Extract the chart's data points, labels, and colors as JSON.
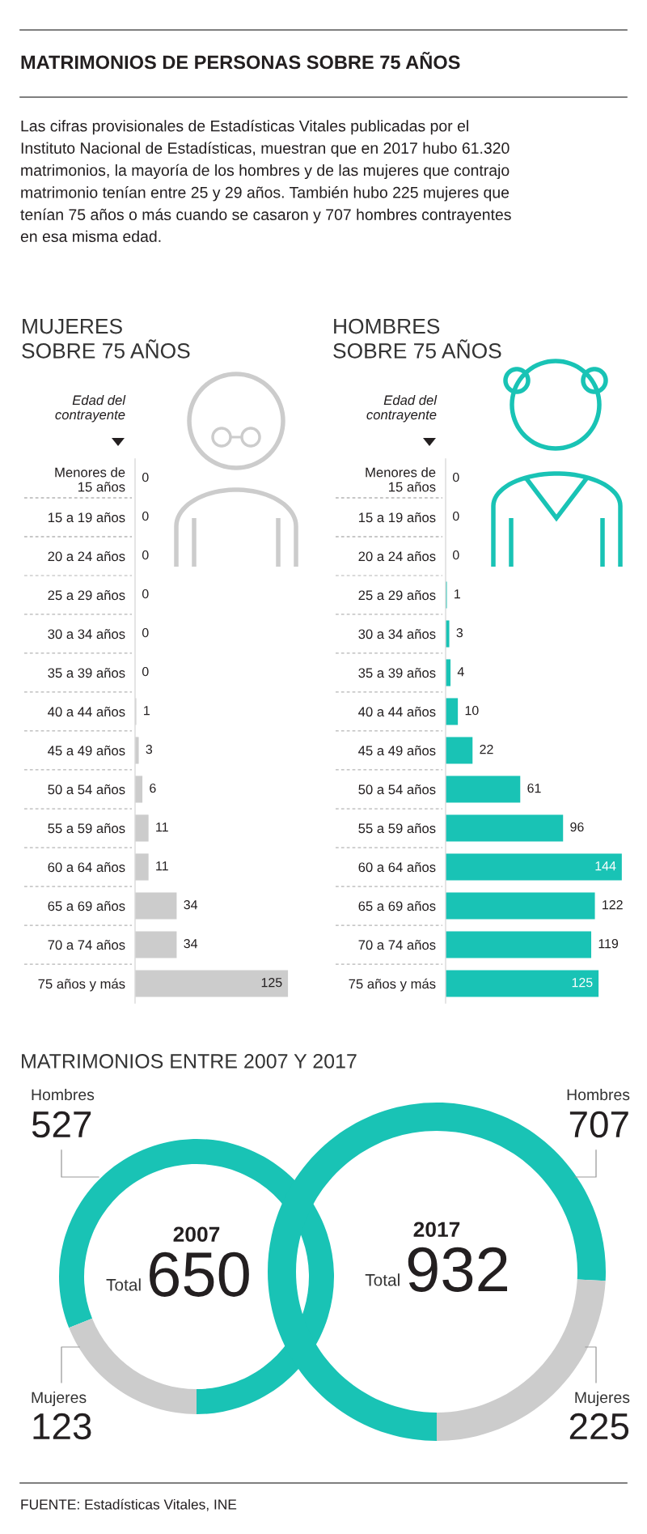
{
  "chart_data": [
    {
      "type": "other",
      "title": "MATRIMONIOS DE PERSONAS SOBRE 75 AÑOS",
      "subtitle": "Las cifras provisionales de Estadísticas Vitales publicadas por el\nInstituto Nacional de Estadísticas, muestran que en 2017 hubo 61.320\nmatrimonios, la mayoría de los hombres y de las mujeres que contrajo\nmatrimonio tenían entre 25 y 29 años. También hubo 225 mujeres que\ntenían 75 años o más cuando se casaron y 707 hombres contrayentes\nen esa misma edad."
    },
    {
      "type": "bar",
      "orientation": "horizontal",
      "title": "MUJERES\nSOBRE 75 AÑOS",
      "ylabel": "Edad del\ncontrayente",
      "categories": [
        "Menores de\n15 años",
        "15 a 19 años",
        "20 a 24 años",
        "25 a 29 años",
        "30 a 34 años",
        "35 a 39 años",
        "40 a 44 años",
        "45 a 49 años",
        "50 a 54 años",
        "55 a 59 años",
        "60 a 64 años",
        "65 a 69 años",
        "70 a 74 años",
        "75 años y más"
      ],
      "values": [
        0,
        0,
        0,
        0,
        0,
        0,
        1,
        3,
        6,
        11,
        11,
        34,
        34,
        125
      ],
      "color": "#cccccc",
      "tick_labels": "y",
      "data_labels": true
    },
    {
      "type": "bar",
      "orientation": "horizontal",
      "title": "HOMBRES\nSOBRE 75 AÑOS",
      "ylabel": "Edad del\ncontrayente",
      "categories": [
        "Menores de\n15 años",
        "15 a 19 años",
        "20 a 24 años",
        "25 a 29 años",
        "30 a 34 años",
        "35 a 39 años",
        "40 a 44 años",
        "45 a 49 años",
        "50 a 54 años",
        "55 a 59 años",
        "60 a 64 años",
        "65 a 69 años",
        "70 a 74 años",
        "75 años y más"
      ],
      "values": [
        0,
        0,
        0,
        1,
        3,
        4,
        10,
        22,
        61,
        96,
        144,
        122,
        119,
        125
      ],
      "color": "#19c3b5",
      "tick_labels": "y",
      "data_labels": true
    },
    {
      "type": "other",
      "title": "MATRIMONIOS ENTRE 2007 Y 2017"
    },
    {
      "type": "donut",
      "title": "2007",
      "categories": [
        "Hombres",
        "Mujeres"
      ],
      "values": [
        527,
        123
      ],
      "colors": [
        "#19c3b5",
        "#cccccc"
      ],
      "data_labels": true,
      "annotations": [
        "Total",
        "650"
      ]
    },
    {
      "type": "donut",
      "title": "2017",
      "categories": [
        "Hombres",
        "Mujeres"
      ],
      "values": [
        707,
        225
      ],
      "colors": [
        "#19c3b5",
        "#cccccc"
      ],
      "data_labels": true,
      "annotations": [
        "Total",
        "932"
      ]
    },
    {
      "type": "other",
      "annotations": [
        "FUENTE: Estadísticas Vitales, INE"
      ]
    }
  ]
}
